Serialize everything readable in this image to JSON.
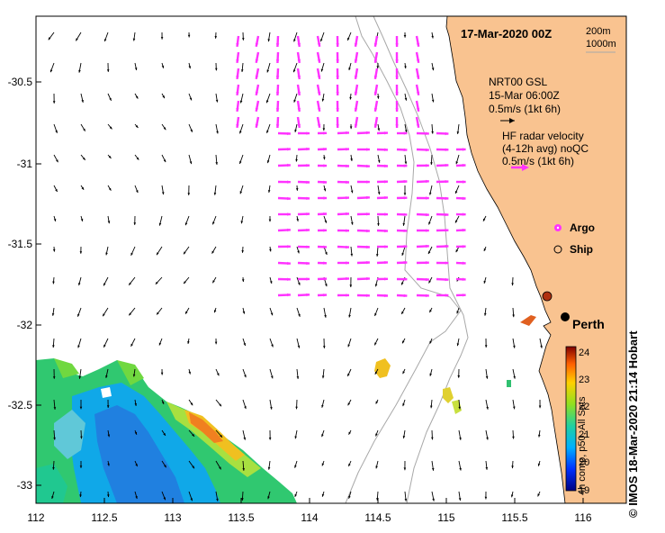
{
  "map": {
    "date_title": "17-Mar-2020 00Z",
    "scale_labels": [
      "200m",
      "1000m"
    ],
    "place_label": "Perth",
    "x_ticks": [
      "112",
      "112.5",
      "113",
      "113.5",
      "114",
      "114.5",
      "115",
      "115.5",
      "116"
    ],
    "y_ticks": [
      "-30.5",
      "-31",
      "-31.5",
      "-32",
      "-32.5",
      "-33"
    ]
  },
  "legend": {
    "model_title": "NRT00 GSL",
    "model_time": "15-Mar 06:00Z",
    "model_scale": "0.5m/s (1kt 6h)",
    "radar_title": "HF radar velocity",
    "radar_subtitle": "(4-12h avg) noQC",
    "radar_scale": "0.5m/s (1kt 6h)",
    "argo_label": "Argo",
    "ship_label": "Ship"
  },
  "colorbar": {
    "title": "4h comp, p50, All Sats",
    "ticks": [
      "24",
      "23",
      "22",
      "21",
      "20",
      "19"
    ]
  },
  "credit": "©  IMOS 18-Mar-2020 21:14 Hobart",
  "colors": {
    "land": "#f9c390",
    "radar_arrows": "#ff33ff",
    "model_arrows": "#000000",
    "isobath": "#a0a0a0"
  }
}
